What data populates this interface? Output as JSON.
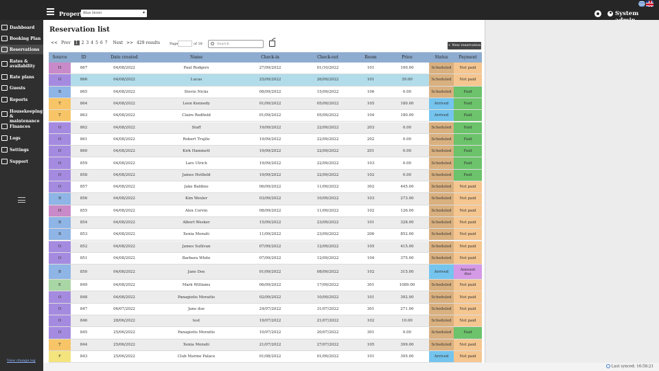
{
  "header": {
    "property_label": "Property:",
    "property_value": "Blue Hotel",
    "user": "System admin"
  },
  "sidebar": {
    "items": [
      {
        "label": "Dashboard",
        "icon": "dashboard-icon"
      },
      {
        "label": "Booking Plan",
        "icon": "booking-plan-icon"
      },
      {
        "label": "Reservations",
        "icon": "reservations-icon",
        "active": true
      },
      {
        "label": "Rates & availability",
        "icon": "rates-icon"
      },
      {
        "label": "Rate plans",
        "icon": "rate-plans-icon"
      },
      {
        "label": "Guests",
        "icon": "guests-icon"
      },
      {
        "label": "Reports",
        "icon": "reports-icon"
      },
      {
        "label": "Housekeeping & maintenance",
        "icon": "housekeeping-icon"
      },
      {
        "label": "Finances",
        "icon": "finances-icon"
      },
      {
        "label": "Logs",
        "icon": "logs-icon"
      },
      {
        "label": "Settings",
        "icon": "settings-icon"
      },
      {
        "label": "Support",
        "icon": "support-icon"
      }
    ],
    "changelog": "View change log"
  },
  "page": {
    "title": "Reservation list",
    "results": "429 results",
    "page_label": "Page",
    "page_of": "of 18",
    "search_placeholder": "Search",
    "new_reservation": "+ New reservation"
  },
  "pager": {
    "first": "<<",
    "prev": "Prev",
    "pages": [
      "1",
      "2",
      "3",
      "4",
      "5",
      "6",
      "7"
    ],
    "current": "1",
    "next": "Next",
    "last": ">>"
  },
  "table": {
    "columns": [
      "Source",
      "ID",
      "Date created",
      "Name",
      "Check-in",
      "Check-out",
      "Room",
      "Price",
      "Status",
      "Payment"
    ],
    "rows": [
      [
        "H",
        "867",
        "04/08/2022",
        "Paul Rodgers",
        "27/09/2022",
        "01/10/2022",
        "101",
        "100.00",
        "Scheduled",
        "Not paid"
      ],
      [
        "O",
        "866",
        "04/08/2022",
        "Lucas",
        "25/09/2022",
        "26/09/2022",
        "101",
        "39.00",
        "Scheduled",
        "Not paid"
      ],
      [
        "B",
        "865",
        "04/08/2022",
        "Stevie Nicks",
        "08/09/2022",
        "15/09/2022",
        "106",
        "0.00",
        "Scheduled",
        "Paid"
      ],
      [
        "T",
        "864",
        "04/08/2022",
        "Leon Kennedy",
        "01/09/2022",
        "05/09/2022",
        "105",
        "180.00",
        "Arrived",
        "Paid"
      ],
      [
        "T",
        "863",
        "04/08/2022",
        "Claire Redfield",
        "01/09/2022",
        "05/09/2022",
        "104",
        "180.00",
        "Arrived",
        "Paid"
      ],
      [
        "O",
        "862",
        "04/08/2022",
        "Staff",
        "19/09/2022",
        "22/09/2022",
        "203",
        "0.00",
        "Scheduled",
        "Paid"
      ],
      [
        "O",
        "861",
        "04/08/2022",
        "Robert Trujilo",
        "19/09/2022",
        "22/09/2022",
        "202",
        "0.00",
        "Scheduled",
        "Paid"
      ],
      [
        "O",
        "860",
        "04/08/2022",
        "Kirk Hammett",
        "19/09/2022",
        "22/09/2022",
        "201",
        "0.00",
        "Scheduled",
        "Paid"
      ],
      [
        "O",
        "859",
        "04/08/2022",
        "Lars Ulrich",
        "19/09/2022",
        "22/09/2022",
        "103",
        "0.00",
        "Scheduled",
        "Paid"
      ],
      [
        "O",
        "858",
        "04/08/2022",
        "James Hetfield",
        "19/09/2022",
        "22/09/2022",
        "102",
        "0.00",
        "Scheduled",
        "Paid"
      ],
      [
        "O",
        "857",
        "04/08/2022",
        "Jake Baldino",
        "06/09/2022",
        "11/09/2022",
        "302",
        "445.00",
        "Scheduled",
        "Not paid"
      ],
      [
        "B",
        "856",
        "04/08/2022",
        "Kim Wexler",
        "03/09/2022",
        "10/09/2022",
        "103",
        "273.00",
        "Scheduled",
        "Not paid"
      ],
      [
        "H",
        "855",
        "04/08/2022",
        "Alex Corvin",
        "08/09/2022",
        "11/09/2022",
        "102",
        "126.00",
        "Scheduled",
        "Not paid"
      ],
      [
        "B",
        "854",
        "04/08/2022",
        "Albert Wesker",
        "15/09/2022",
        "23/09/2022",
        "101",
        "328.00",
        "Scheduled",
        "Not paid"
      ],
      [
        "B",
        "853",
        "04/08/2022",
        "Xenia Moraiti",
        "11/09/2022",
        "23/09/2022",
        "206",
        "852.00",
        "Scheduled",
        "Not paid"
      ],
      [
        "O",
        "852",
        "04/08/2022",
        "James Sullivan",
        "07/09/2022",
        "12/09/2022",
        "105",
        "415.00",
        "Scheduled",
        "Not paid"
      ],
      [
        "O",
        "851",
        "04/08/2022",
        "Barbara White",
        "07/09/2022",
        "12/09/2022",
        "104",
        "375.00",
        "Scheduled",
        "Not paid"
      ],
      [
        "B",
        "850",
        "04/08/2022",
        "Jane Doe",
        "01/09/2022",
        "08/09/2022",
        "102",
        "315.00",
        "Arrived",
        "Amount due"
      ],
      [
        "E",
        "849",
        "04/08/2022",
        "Mark Williams",
        "06/09/2022",
        "17/09/2022",
        "301",
        "1089.00",
        "Scheduled",
        "Not paid"
      ],
      [
        "O",
        "848",
        "04/08/2022",
        "Panagiotis Moraitis",
        "02/09/2022",
        "10/09/2022",
        "101",
        "392.00",
        "Scheduled",
        "Not paid"
      ],
      [
        "O",
        "847",
        "06/07/2022",
        "Jane doe",
        "24/07/2022",
        "31/07/2022",
        "301",
        "271.00",
        "Scheduled",
        "Not paid"
      ],
      [
        "O",
        "846",
        "28/06/2022",
        "test",
        "19/07/2022",
        "21/07/2022",
        "102",
        "10.00",
        "Scheduled",
        "Not paid"
      ],
      [
        "O",
        "845",
        "25/06/2022",
        "Panagiotis Moraitis",
        "10/07/2022",
        "20/07/2022",
        "301",
        "0.00",
        "Scheduled",
        "Paid"
      ],
      [
        "T",
        "844",
        "25/06/2022",
        "Xenia Moraiti",
        "21/07/2022",
        "27/07/2022",
        "105",
        "399.00",
        "Scheduled",
        "Not paid"
      ],
      [
        "F",
        "843",
        "25/06/2022",
        "Club Marine Palace",
        "01/08/2022",
        "01/09/2022",
        "101",
        "395.00",
        "Arrived",
        "Not paid"
      ]
    ]
  },
  "colors": {
    "source": {
      "H": "#c98ac9",
      "O": "#a58be0",
      "B": "#8fb4e6",
      "T": "#f7c567",
      "E": "#a9d6a5",
      "F": "#f3e47e"
    },
    "status": {
      "Scheduled": "#d9b07f",
      "Arrived": "#74c4ee"
    },
    "payment": {
      "Not paid": "#f5c690",
      "Paid": "#6cc36b",
      "Amount due": "#d59ae6"
    },
    "highlight_row": "#b2dcea"
  },
  "footer": {
    "sync": "Last synced: 16:58:21"
  }
}
